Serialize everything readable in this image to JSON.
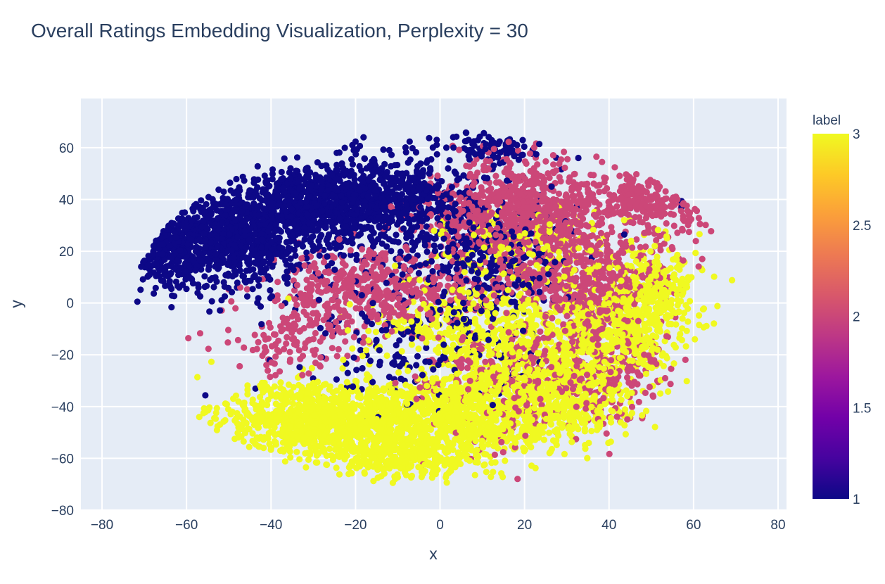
{
  "chart_data": {
    "type": "scatter",
    "title": "Overall Ratings Embedding Visualization, Perplexity = 30",
    "xlabel": "x",
    "ylabel": "y",
    "xlim": [
      -85,
      82
    ],
    "ylim": [
      -80,
      79
    ],
    "x_ticks": [
      -80,
      -60,
      -40,
      -20,
      0,
      20,
      40,
      60,
      80
    ],
    "y_ticks": [
      -80,
      -60,
      -40,
      -20,
      0,
      20,
      40,
      60
    ],
    "x_tick_labels": [
      "−80",
      "−60",
      "−40",
      "−20",
      "0",
      "20",
      "40",
      "60",
      "80"
    ],
    "y_tick_labels": [
      "−80",
      "−60",
      "−40",
      "−20",
      "0",
      "20",
      "40",
      "60"
    ],
    "grid": true,
    "colorbar": {
      "title": "label",
      "range": [
        1,
        3
      ],
      "tick_values": [
        1,
        1.5,
        2,
        2.5,
        3
      ],
      "tick_labels": [
        "1",
        "1.5",
        "2",
        "2.5",
        "3"
      ],
      "colorscale": [
        "#0d0887",
        "#46039f",
        "#7201a8",
        "#9c179e",
        "#bd3786",
        "#d8576b",
        "#ed7953",
        "#fb9f3a",
        "#fdca26",
        "#f0f921"
      ]
    },
    "series": [
      {
        "label": 1,
        "color": "#0d0887",
        "clusters": [
          {
            "center": [
              -50,
              25
            ],
            "spread": [
              14,
              13
            ],
            "count": 900
          },
          {
            "center": [
              -30,
              38
            ],
            "spread": [
              14,
              12
            ],
            "count": 700
          },
          {
            "center": [
              -10,
              40
            ],
            "spread": [
              16,
              14
            ],
            "count": 600
          },
          {
            "center": [
              -65,
              18
            ],
            "spread": [
              7,
              10
            ],
            "count": 250
          },
          {
            "center": [
              10,
              15
            ],
            "spread": [
              16,
              14
            ],
            "count": 300
          },
          {
            "center": [
              15,
              60
            ],
            "spread": [
              10,
              5
            ],
            "count": 90
          },
          {
            "center": [
              64,
              42
            ],
            "spread": [
              5,
              5
            ],
            "count": 60
          },
          {
            "center": [
              -5,
              -15
            ],
            "spread": [
              20,
              20
            ],
            "count": 200
          }
        ]
      },
      {
        "label": 2,
        "color": "#cc4778",
        "clusters": [
          {
            "center": [
              20,
              35
            ],
            "spread": [
              16,
              14
            ],
            "count": 800
          },
          {
            "center": [
              -15,
              5
            ],
            "spread": [
              18,
              12
            ],
            "count": 500
          },
          {
            "center": [
              35,
              10
            ],
            "spread": [
              14,
              14
            ],
            "count": 500
          },
          {
            "center": [
              50,
              40
            ],
            "spread": [
              10,
              8
            ],
            "count": 250
          },
          {
            "center": [
              65,
              43
            ],
            "spread": [
              5,
              5
            ],
            "count": 150
          },
          {
            "center": [
              20,
              -30
            ],
            "spread": [
              18,
              18
            ],
            "count": 300
          },
          {
            "center": [
              40,
              -20
            ],
            "spread": [
              10,
              18
            ],
            "count": 200
          },
          {
            "center": [
              -35,
              -15
            ],
            "spread": [
              10,
              8
            ],
            "count": 100
          }
        ]
      },
      {
        "label": 3,
        "color": "#f0f921",
        "clusters": [
          {
            "center": [
              -30,
              -45
            ],
            "spread": [
              16,
              10
            ],
            "count": 900
          },
          {
            "center": [
              0,
              -45
            ],
            "spread": [
              18,
              12
            ],
            "count": 900
          },
          {
            "center": [
              25,
              -35
            ],
            "spread": [
              15,
              14
            ],
            "count": 700
          },
          {
            "center": [
              40,
              -10
            ],
            "spread": [
              12,
              14
            ],
            "count": 500
          },
          {
            "center": [
              50,
              5
            ],
            "spread": [
              8,
              12
            ],
            "count": 250
          },
          {
            "center": [
              10,
              -10
            ],
            "spread": [
              18,
              12
            ],
            "count": 400
          },
          {
            "center": [
              20,
              20
            ],
            "spread": [
              16,
              12
            ],
            "count": 200
          },
          {
            "center": [
              -10,
              -60
            ],
            "spread": [
              12,
              6
            ],
            "count": 250
          }
        ]
      }
    ]
  }
}
